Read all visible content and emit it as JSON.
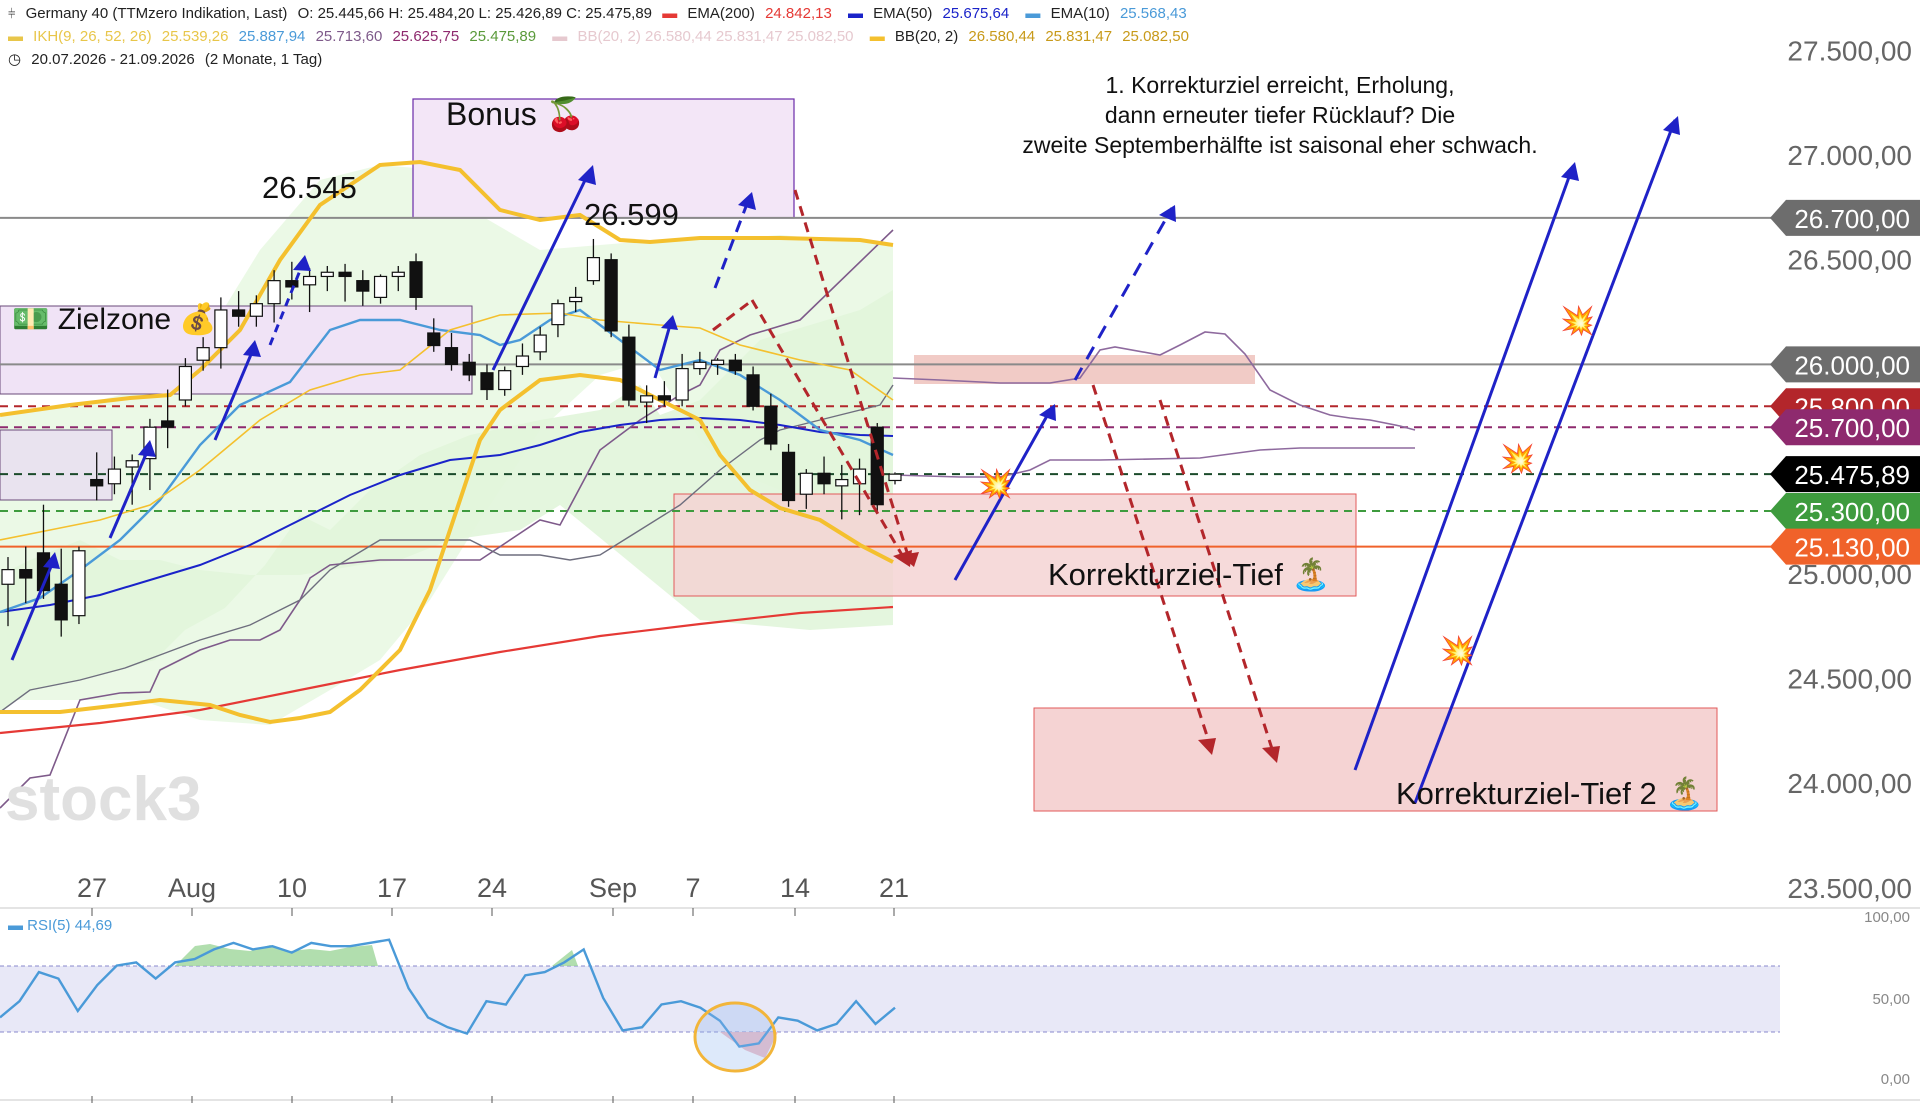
{
  "header": {
    "instrument": "Germany 40 (TTMzero Indikation, Last)",
    "ohlc": "O: 25.445,66  H: 25.484,20  L: 25.426,89  C: 25.475,89",
    "indicators_row1": [
      {
        "name": "EMA(200)",
        "value": "24.842,13",
        "color": "#e53935"
      },
      {
        "name": "EMA(50)",
        "value": "25.675,64",
        "color": "#1a23c9"
      },
      {
        "name": "EMA(10)",
        "value": "25.568,43",
        "color": "#4a9ad8"
      }
    ],
    "ikh_label": "IKH(9, 26, 52, 26)",
    "ikh_values": [
      {
        "value": "25.539,26",
        "color": "#e8c64a"
      },
      {
        "value": "25.887,94",
        "color": "#4a9ad8"
      },
      {
        "value": "25.713,60",
        "color": "#7e5a8a"
      },
      {
        "value": "25.625,75",
        "color": "#8e2a6e"
      },
      {
        "value": "25.475,89",
        "color": "#5a9a3a"
      }
    ],
    "bb_faded": "BB(20, 2)  26.580,44  25.831,47  25.082,50",
    "bb_label": "BB(20, 2)",
    "bb_values": [
      "26.580,44",
      "25.831,47",
      "25.082,50"
    ],
    "date_range": "20.07.2026 - 21.09.2026",
    "period": "(2 Monate, 1 Tag)"
  },
  "annotations": {
    "bonus": "Bonus 🍒",
    "zielzone": "💵 Zielzone 💰",
    "peak1": "26.545",
    "peak2": "26.599",
    "korrekturziel1": "Korrekturziel-Tief 🏝️",
    "korrekturziel2": "Korrekturziel-Tief 2 🏝️",
    "note": [
      "1. Korrekturziel erreicht, Erholung,",
      "dann erneuter tiefer Rücklauf? Die",
      "zweite Septemberhälfte ist saisonal eher schwach."
    ],
    "watermark": "stock3"
  },
  "chart_data": {
    "type": "candlestick",
    "x_tick_labels": [
      "27",
      "Aug",
      "10",
      "17",
      "24",
      "Sep",
      "7",
      "14",
      "21"
    ],
    "y_tick_labels": [
      "27.500,00",
      "27.000,00",
      "26.500,00",
      "25.000,00",
      "24.500,00",
      "24.000,00",
      "23.500,00"
    ],
    "ylim": [
      23500,
      27700
    ],
    "price_tags": [
      {
        "label": "26.700,00",
        "value": 26700,
        "bg": "#6d6d6d",
        "fg": "#ffffff"
      },
      {
        "label": "26.000,00",
        "value": 26000,
        "bg": "#6d6d6d",
        "fg": "#ffffff"
      },
      {
        "label": "25.800,00",
        "value": 25800,
        "bg": "#b3262b",
        "fg": "#ffffff"
      },
      {
        "label": "25.700,00",
        "value": 25700,
        "bg": "#8e2a6e",
        "fg": "#ffffff"
      },
      {
        "label": "25.475,89",
        "value": 25475.89,
        "bg": "#000000",
        "fg": "#ffffff"
      },
      {
        "label": "25.300,00",
        "value": 25300,
        "bg": "#3e9b3e",
        "fg": "#ffffff"
      },
      {
        "label": "25.130,00",
        "value": 25130,
        "bg": "#f0622a",
        "fg": "#ffffff"
      }
    ],
    "horizontal_lines": [
      {
        "value": 26700,
        "color": "#8a8a8a",
        "style": "solid"
      },
      {
        "value": 26000,
        "color": "#8a8a8a",
        "style": "solid"
      },
      {
        "value": 25800,
        "color": "#b3262b",
        "style": "dashed"
      },
      {
        "value": 25700,
        "color": "#8e2a6e",
        "style": "dashed"
      },
      {
        "value": 25475.89,
        "color": "#1a4a2a",
        "style": "dashed"
      },
      {
        "value": 25300,
        "color": "#3e9b3e",
        "style": "dashed"
      },
      {
        "value": 25130,
        "color": "#f0622a",
        "style": "solid"
      }
    ],
    "candles": [
      {
        "t": "2026-07-20",
        "o": 24950,
        "h": 25080,
        "l": 24750,
        "c": 25020
      },
      {
        "t": "2026-07-21",
        "o": 25020,
        "h": 25130,
        "l": 24860,
        "c": 24980
      },
      {
        "t": "2026-07-22",
        "o": 25100,
        "h": 25330,
        "l": 24880,
        "c": 24920
      },
      {
        "t": "2026-07-23",
        "o": 24950,
        "h": 25120,
        "l": 24700,
        "c": 24780
      },
      {
        "t": "2026-07-24",
        "o": 24800,
        "h": 25130,
        "l": 24760,
        "c": 25110
      },
      {
        "t": "2026-07-27",
        "o": 25450,
        "h": 25580,
        "l": 25350,
        "c": 25420
      },
      {
        "t": "2026-07-28",
        "o": 25430,
        "h": 25560,
        "l": 25380,
        "c": 25500
      },
      {
        "t": "2026-07-29",
        "o": 25510,
        "h": 25570,
        "l": 25330,
        "c": 25540
      },
      {
        "t": "2026-07-30",
        "o": 25550,
        "h": 25740,
        "l": 25400,
        "c": 25700
      },
      {
        "t": "2026-07-31",
        "o": 25730,
        "h": 25880,
        "l": 25600,
        "c": 25700
      },
      {
        "t": "2026-08-03",
        "o": 25830,
        "h": 26030,
        "l": 25800,
        "c": 25990
      },
      {
        "t": "2026-08-04",
        "o": 26020,
        "h": 26130,
        "l": 25970,
        "c": 26080
      },
      {
        "t": "2026-08-05",
        "o": 26080,
        "h": 26320,
        "l": 25980,
        "c": 26260
      },
      {
        "t": "2026-08-06",
        "o": 26260,
        "h": 26350,
        "l": 26180,
        "c": 26230
      },
      {
        "t": "2026-08-07",
        "o": 26230,
        "h": 26330,
        "l": 26180,
        "c": 26290
      },
      {
        "t": "2026-08-10",
        "o": 26290,
        "h": 26450,
        "l": 26200,
        "c": 26400
      },
      {
        "t": "2026-08-11",
        "o": 26400,
        "h": 26490,
        "l": 26310,
        "c": 26370
      },
      {
        "t": "2026-08-12",
        "o": 26380,
        "h": 26460,
        "l": 26250,
        "c": 26420
      },
      {
        "t": "2026-08-13",
        "o": 26420,
        "h": 26470,
        "l": 26350,
        "c": 26440
      },
      {
        "t": "2026-08-14",
        "o": 26440,
        "h": 26480,
        "l": 26300,
        "c": 26420
      },
      {
        "t": "2026-08-17",
        "o": 26400,
        "h": 26450,
        "l": 26280,
        "c": 26350
      },
      {
        "t": "2026-08-18",
        "o": 26320,
        "h": 26430,
        "l": 26290,
        "c": 26420
      },
      {
        "t": "2026-08-19",
        "o": 26420,
        "h": 26470,
        "l": 26350,
        "c": 26440
      },
      {
        "t": "2026-08-20",
        "o": 26490,
        "h": 26530,
        "l": 26260,
        "c": 26320
      },
      {
        "t": "2026-08-21",
        "o": 26150,
        "h": 26220,
        "l": 26060,
        "c": 26090
      },
      {
        "t": "2026-08-24",
        "o": 26080,
        "h": 26150,
        "l": 25970,
        "c": 26000
      },
      {
        "t": "2026-08-25",
        "o": 26010,
        "h": 26050,
        "l": 25920,
        "c": 25950
      },
      {
        "t": "2026-08-26",
        "o": 25960,
        "h": 26000,
        "l": 25830,
        "c": 25880
      },
      {
        "t": "2026-08-27",
        "o": 25880,
        "h": 25990,
        "l": 25850,
        "c": 25970
      },
      {
        "t": "2026-08-28",
        "o": 25990,
        "h": 26100,
        "l": 25950,
        "c": 26040
      },
      {
        "t": "2026-08-31",
        "o": 26060,
        "h": 26180,
        "l": 26020,
        "c": 26140
      },
      {
        "t": "2026-09-01",
        "o": 26190,
        "h": 26310,
        "l": 26130,
        "c": 26290
      },
      {
        "t": "2026-09-02",
        "o": 26300,
        "h": 26370,
        "l": 26250,
        "c": 26320
      },
      {
        "t": "2026-09-03",
        "o": 26400,
        "h": 26599,
        "l": 26380,
        "c": 26510
      },
      {
        "t": "2026-09-04",
        "o": 26500,
        "h": 26530,
        "l": 26130,
        "c": 26160
      },
      {
        "t": "2026-09-07",
        "o": 26130,
        "h": 26190,
        "l": 25800,
        "c": 25830
      },
      {
        "t": "2026-09-08",
        "o": 25820,
        "h": 25900,
        "l": 25720,
        "c": 25850
      },
      {
        "t": "2026-09-09",
        "o": 25850,
        "h": 25920,
        "l": 25800,
        "c": 25830
      },
      {
        "t": "2026-09-10",
        "o": 25830,
        "h": 26050,
        "l": 25800,
        "c": 25980
      },
      {
        "t": "2026-09-11",
        "o": 25980,
        "h": 26060,
        "l": 25950,
        "c": 26010
      },
      {
        "t": "2026-09-14",
        "o": 26000,
        "h": 26030,
        "l": 25950,
        "c": 26020
      },
      {
        "t": "2026-09-15",
        "o": 26020,
        "h": 26050,
        "l": 25950,
        "c": 25970
      },
      {
        "t": "2026-09-16",
        "o": 25950,
        "h": 25990,
        "l": 25780,
        "c": 25800
      },
      {
        "t": "2026-09-17",
        "o": 25800,
        "h": 25860,
        "l": 25590,
        "c": 25620
      },
      {
        "t": "2026-09-18",
        "o": 25580,
        "h": 25620,
        "l": 25320,
        "c": 25350
      },
      {
        "t": "2026-09-21",
        "o": 25380,
        "h": 25500,
        "l": 25310,
        "c": 25480
      },
      {
        "t": "2026-09-22",
        "o": 25480,
        "h": 25560,
        "l": 25380,
        "c": 25430
      },
      {
        "t": "2026-09-23",
        "o": 25420,
        "h": 25520,
        "l": 25260,
        "c": 25450
      },
      {
        "t": "2026-09-24",
        "o": 25430,
        "h": 25550,
        "l": 25280,
        "c": 25500
      },
      {
        "t": "2026-09-25",
        "o": 25700,
        "h": 25720,
        "l": 25300,
        "c": 25330
      },
      {
        "t": "2026-09-28",
        "o": 25445.66,
        "h": 25484.2,
        "l": 25426.89,
        "c": 25475.89
      }
    ],
    "series": [
      {
        "name": "EMA(200)",
        "color": "#e53935"
      },
      {
        "name": "EMA(50)",
        "color": "#1a23c9"
      },
      {
        "name": "EMA(10)",
        "color": "#4a9ad8"
      },
      {
        "name": "BB(20, 2)",
        "color": "#f4c02e"
      },
      {
        "name": "IKH(9, 26, 52, 26)",
        "color": "#e8c64a"
      }
    ],
    "rsi": {
      "label": "RSI(5)",
      "value": "44,69",
      "color": "#4a9ad8",
      "y_tick_labels": [
        "100,00",
        "50,00",
        "0,00"
      ],
      "upper_band": 70,
      "lower_band": 30,
      "values": [
        38,
        48,
        66,
        62,
        42,
        58,
        70,
        72,
        62,
        72,
        74,
        80,
        84,
        80,
        82,
        78,
        84,
        82,
        82,
        84,
        86,
        56,
        38,
        32,
        28,
        48,
        46,
        64,
        66,
        72,
        80,
        50,
        30,
        32,
        46,
        48,
        44,
        36,
        20,
        22,
        38,
        36,
        30,
        34,
        48,
        34,
        44
      ]
    }
  }
}
